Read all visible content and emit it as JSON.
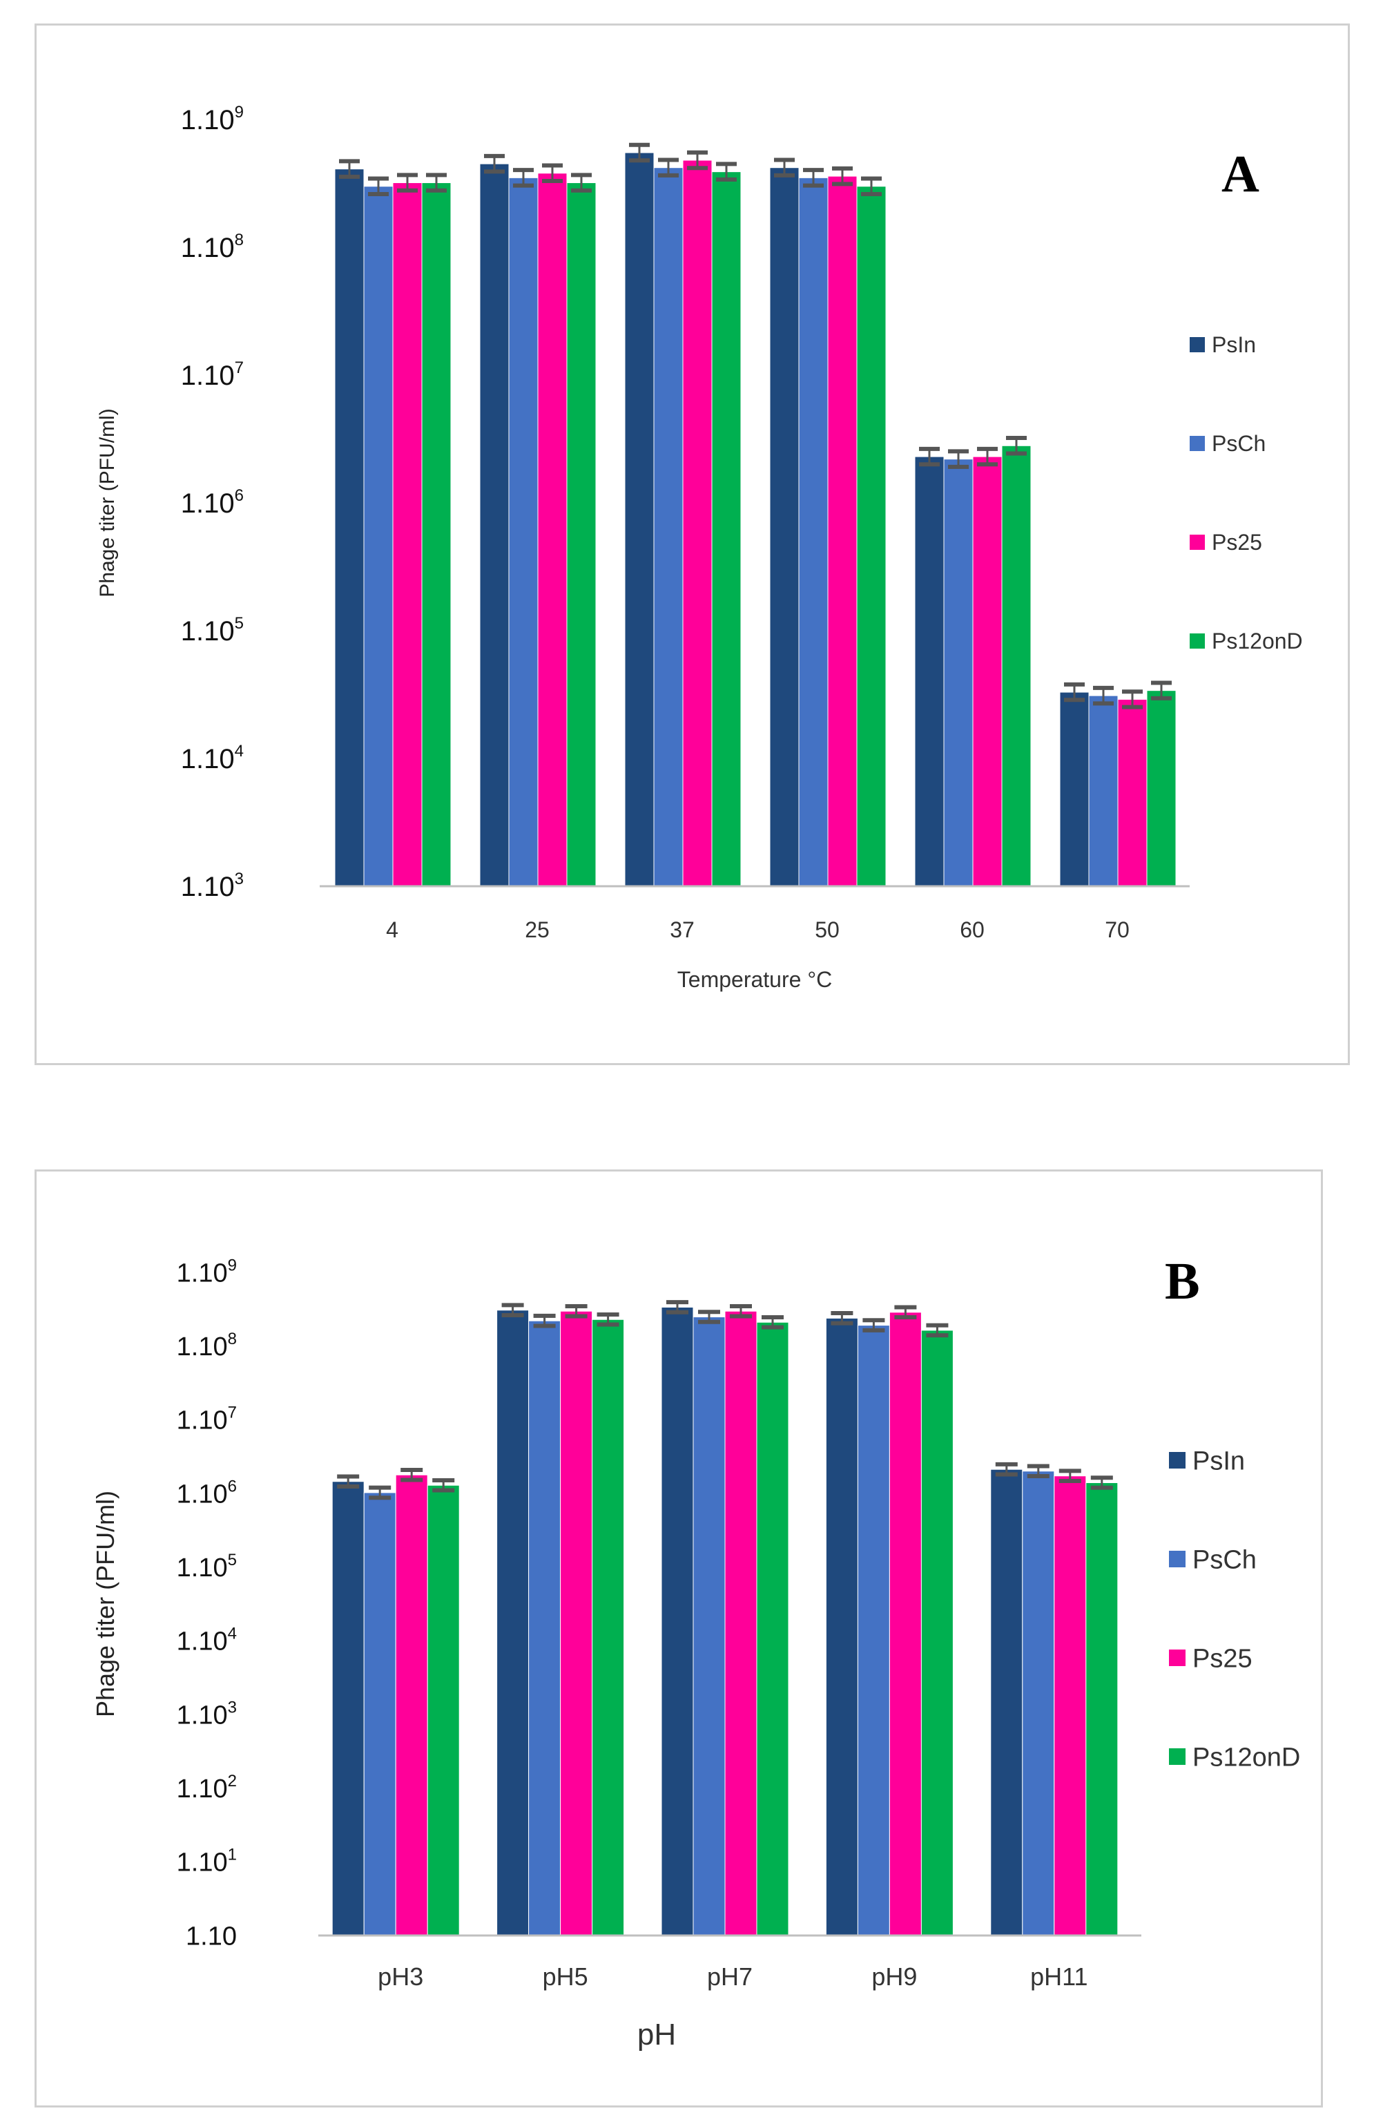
{
  "colors": {
    "PsIn": "#1f497d",
    "PsCh": "#4472c4",
    "Ps25": "#ff0099",
    "Ps12onD": "#00b050",
    "error_bar": "#555555",
    "axis": "#bfbfbf"
  },
  "chart_data": [
    {
      "type": "bar",
      "panel_label": "A",
      "title": "",
      "xlabel": "Temperature °C",
      "ylabel": "Phage titer (PFU/ml)",
      "yscale": "log",
      "ylim": [
        1000,
        1000000000
      ],
      "yticks": [
        {
          "base": "1.10",
          "exp": "9"
        },
        {
          "base": "1.10",
          "exp": "8"
        },
        {
          "base": "1.10",
          "exp": "7"
        },
        {
          "base": "1.10",
          "exp": "6"
        },
        {
          "base": "1.10",
          "exp": "5"
        },
        {
          "base": "1.10",
          "exp": "4"
        },
        {
          "base": "1.10",
          "exp": "3"
        }
      ],
      "categories": [
        "4",
        "25",
        "37",
        "50",
        "60",
        "70"
      ],
      "legend_position": "right",
      "series": [
        {
          "name": "PsIn",
          "values": [
            410000000,
            450000000,
            550000000,
            420000000,
            2300000,
            33000
          ]
        },
        {
          "name": "PsCh",
          "values": [
            300000000,
            350000000,
            420000000,
            350000000,
            2200000,
            31000
          ]
        },
        {
          "name": "Ps25",
          "values": [
            320000000,
            380000000,
            480000000,
            360000000,
            2300000,
            29000
          ]
        },
        {
          "name": "Ps12onD",
          "values": [
            320000000,
            320000000,
            390000000,
            300000000,
            2800000,
            34000
          ]
        }
      ]
    },
    {
      "type": "bar",
      "panel_label": "B",
      "title": "",
      "xlabel": "pH",
      "ylabel": "Phage titer (PFU/ml)",
      "yscale": "log",
      "ylim": [
        10,
        1000000000
      ],
      "yticks": [
        {
          "base": "1.10",
          "exp": "9"
        },
        {
          "base": "1.10",
          "exp": "8"
        },
        {
          "base": "1.10",
          "exp": "7"
        },
        {
          "base": "1.10",
          "exp": "6"
        },
        {
          "base": "1.10",
          "exp": "5"
        },
        {
          "base": "1.10",
          "exp": "4"
        },
        {
          "base": "1.10",
          "exp": "3"
        },
        {
          "base": "1.10",
          "exp": "2"
        },
        {
          "base": "1.10",
          "exp": "1"
        },
        {
          "base": "1.10",
          "exp": ""
        }
      ],
      "categories": [
        "pH3",
        "pH5",
        "pH7",
        "pH9",
        "pH11"
      ],
      "legend_position": "right",
      "series": [
        {
          "name": "PsIn",
          "values": [
            3000000,
            350000000,
            380000000,
            280000000,
            4200000
          ]
        },
        {
          "name": "PsCh",
          "values": [
            2200000,
            260000000,
            290000000,
            230000000,
            4000000
          ]
        },
        {
          "name": "Ps25",
          "values": [
            3600000,
            340000000,
            340000000,
            330000000,
            3500000
          ]
        },
        {
          "name": "Ps12onD",
          "values": [
            2700000,
            270000000,
            250000000,
            200000000,
            2900000
          ]
        }
      ]
    }
  ]
}
